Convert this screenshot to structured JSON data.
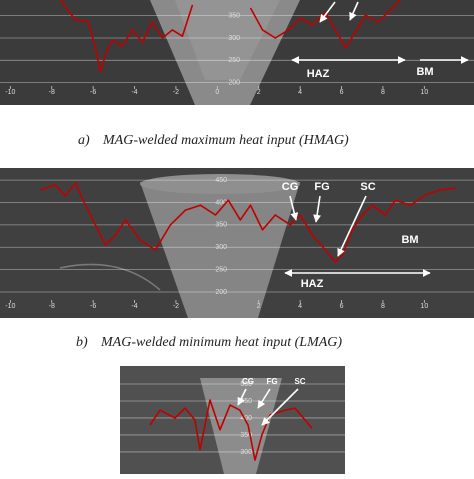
{
  "chart_data": [
    {
      "type": "line",
      "caption_label": "a)",
      "caption": "MAG-welded maximum heat input (HMAG)",
      "annotations": [
        "HAZ",
        "BM"
      ],
      "xlim": [
        -10.5,
        12.4
      ],
      "ylim": [
        150,
        385
      ],
      "xticks": [
        -10,
        -8,
        -6,
        -4,
        -2,
        0,
        2,
        4,
        6,
        8,
        10
      ],
      "yticks": [
        350,
        300,
        250,
        200
      ],
      "grid": true,
      "color": "#c00000",
      "x": [
        -7.58,
        -6.86,
        -6.23,
        -5.89,
        -5.65,
        -5.36,
        -5.07,
        -4.59,
        -4.1,
        -3.62,
        -3.14,
        -2.65,
        -2.17,
        -1.69,
        -1.2,
        0,
        1.6,
        2.18,
        2.8,
        3.43,
        4.01,
        4.59,
        5.22,
        5.7,
        6.19,
        6.67,
        7.15,
        7.78,
        8.46,
        8.84
      ],
      "values": [
        385,
        340,
        336,
        278,
        224,
        269,
        295,
        282,
        318,
        291,
        336,
        300,
        318,
        304,
        374,
        null,
        367,
        318,
        300,
        318,
        345,
        329,
        358,
        318,
        278,
        313,
        351,
        336,
        367,
        385
      ]
    },
    {
      "type": "line",
      "caption_label": "b)",
      "caption": "MAG-welded minimum heat input (LMAG)",
      "annotations": [
        "CG",
        "FG",
        "SC",
        "BM",
        "HAZ"
      ],
      "xlim": [
        -10.5,
        12.4
      ],
      "ylim": [
        142,
        477
      ],
      "xticks": [
        -10,
        -8,
        -6,
        -4,
        -2,
        2,
        4,
        6,
        8,
        10
      ],
      "yticks": [
        450,
        400,
        350,
        300,
        250,
        200
      ],
      "grid": true,
      "color": "#c00000",
      "x": [
        -8.55,
        -7.82,
        -7.34,
        -6.86,
        -6.37,
        -5.89,
        -5.41,
        -4.92,
        -4.44,
        -3.72,
        -2.99,
        -2.27,
        -1.54,
        -0.82,
        -0.09,
        0.53,
        1.11,
        1.6,
        2.18,
        2.8,
        3.53,
        4.01,
        4.59,
        5.22,
        5.7,
        6.04,
        6.52,
        7.0,
        7.49,
        8.12,
        8.6,
        9.33,
        10.05,
        10.78,
        11.5
      ],
      "values": [
        428,
        439,
        414,
        444,
        394,
        350,
        305,
        327,
        361,
        316,
        294,
        350,
        383,
        394,
        372,
        405,
        361,
        394,
        339,
        372,
        350,
        372,
        327,
        294,
        267,
        283,
        339,
        372,
        394,
        372,
        405,
        394,
        417,
        428,
        432
      ]
    },
    {
      "type": "line",
      "annotations": [
        "CG",
        "FG",
        "SC"
      ],
      "xlim": [
        -6.5,
        6.5
      ],
      "ylim": [
        235,
        553
      ],
      "yticks": [
        500,
        450,
        400,
        350,
        300
      ],
      "grid": true,
      "color": "#c00000",
      "x": [
        -4.77,
        -4.19,
        -3.32,
        -2.74,
        -2.17,
        -1.88,
        -1.3,
        -0.72,
        -0.14,
        0.43,
        0.9,
        1.3,
        1.7,
        2.17,
        3.03,
        3.61,
        4.19,
        4.59
      ],
      "values": [
        379,
        423,
        400,
        429,
        394,
        306,
        453,
        365,
        438,
        423,
        379,
        276,
        350,
        409,
        423,
        429,
        394,
        370
      ]
    }
  ]
}
